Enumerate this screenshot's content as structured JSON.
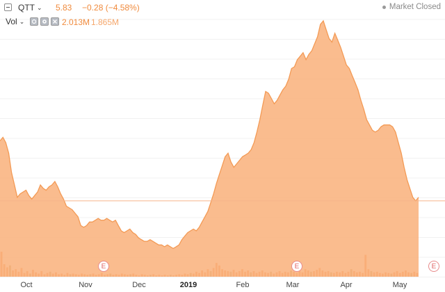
{
  "header": {
    "ticker": "QTT",
    "price": "5.83",
    "change": "−0.28 (−4.58%)",
    "market_status": "Market Closed"
  },
  "volume_bar": {
    "label": "Vol",
    "current": "2.013M",
    "average": "1.865M"
  },
  "colors": {
    "accent": "#f08a3c",
    "area_fill": "#f9b07a",
    "line": "#f39a55",
    "volume_bar": "#f7a36a",
    "volume_bar_alt": "#c9b07a",
    "earnings_badge": "#e06666"
  },
  "x_axis": {
    "ticks": [
      "Oct",
      "Nov",
      "Dec",
      "2019",
      "Feb",
      "Mar",
      "Apr",
      "May"
    ]
  },
  "earnings_markers": [
    "E",
    "E",
    "E"
  ],
  "chart_data": {
    "type": "area",
    "price_series": [
      0.77,
      0.79,
      0.76,
      0.7,
      0.59,
      0.52,
      0.45,
      0.47,
      0.48,
      0.49,
      0.46,
      0.44,
      0.46,
      0.48,
      0.52,
      0.5,
      0.49,
      0.51,
      0.52,
      0.54,
      0.51,
      0.47,
      0.44,
      0.4,
      0.39,
      0.38,
      0.36,
      0.34,
      0.29,
      0.28,
      0.29,
      0.31,
      0.31,
      0.32,
      0.33,
      0.32,
      0.32,
      0.33,
      0.32,
      0.31,
      0.32,
      0.29,
      0.26,
      0.25,
      0.26,
      0.27,
      0.25,
      0.24,
      0.22,
      0.21,
      0.2,
      0.2,
      0.21,
      0.2,
      0.19,
      0.18,
      0.18,
      0.17,
      0.18,
      0.17,
      0.16,
      0.17,
      0.18,
      0.21,
      0.23,
      0.25,
      0.26,
      0.27,
      0.26,
      0.28,
      0.31,
      0.34,
      0.37,
      0.42,
      0.47,
      0.53,
      0.58,
      0.63,
      0.68,
      0.7,
      0.65,
      0.62,
      0.64,
      0.66,
      0.68,
      0.69,
      0.7,
      0.72,
      0.76,
      0.82,
      0.89,
      0.97,
      1.05,
      1.04,
      1.01,
      0.98,
      1.0,
      1.03,
      1.06,
      1.08,
      1.12,
      1.18,
      1.19,
      1.23,
      1.25,
      1.27,
      1.23,
      1.26,
      1.28,
      1.32,
      1.36,
      1.43,
      1.45,
      1.4,
      1.35,
      1.33,
      1.38,
      1.34,
      1.3,
      1.25,
      1.2,
      1.18,
      1.14,
      1.1,
      1.06,
      1.0,
      0.95,
      0.89,
      0.86,
      0.83,
      0.82,
      0.83,
      0.85,
      0.86,
      0.86,
      0.86,
      0.85,
      0.82,
      0.76,
      0.7,
      0.62,
      0.55,
      0.5,
      0.45,
      0.43,
      0.45
    ],
    "volume_series": [
      0.4,
      0.2,
      0.15,
      0.18,
      0.1,
      0.12,
      0.08,
      0.14,
      0.06,
      0.09,
      0.05,
      0.11,
      0.07,
      0.05,
      0.09,
      0.04,
      0.06,
      0.08,
      0.05,
      0.07,
      0.04,
      0.05,
      0.03,
      0.06,
      0.04,
      0.05,
      0.04,
      0.03,
      0.05,
      0.04,
      0.03,
      0.04,
      0.05,
      0.03,
      0.04,
      0.06,
      0.03,
      0.04,
      0.05,
      0.03,
      0.04,
      0.03,
      0.05,
      0.04,
      0.03,
      0.04,
      0.05,
      0.03,
      0.02,
      0.04,
      0.03,
      0.02,
      0.03,
      0.04,
      0.02,
      0.03,
      0.02,
      0.03,
      0.02,
      0.03,
      0.02,
      0.03,
      0.04,
      0.03,
      0.05,
      0.04,
      0.06,
      0.05,
      0.08,
      0.06,
      0.1,
      0.07,
      0.12,
      0.09,
      0.14,
      0.22,
      0.18,
      0.12,
      0.1,
      0.09,
      0.08,
      0.11,
      0.07,
      0.09,
      0.12,
      0.08,
      0.1,
      0.07,
      0.09,
      0.06,
      0.08,
      0.1,
      0.07,
      0.06,
      0.08,
      0.05,
      0.07,
      0.09,
      0.06,
      0.08,
      0.07,
      0.1,
      0.08,
      0.06,
      0.09,
      0.07,
      0.12,
      0.1,
      0.08,
      0.09,
      0.11,
      0.14,
      0.1,
      0.08,
      0.09,
      0.07,
      0.06,
      0.08,
      0.07,
      0.09,
      0.06,
      0.08,
      0.12,
      0.09,
      0.07,
      0.08,
      0.06,
      0.35,
      0.12,
      0.09,
      0.07,
      0.08,
      0.06,
      0.05,
      0.07,
      0.06,
      0.05,
      0.07,
      0.09,
      0.06,
      0.08,
      0.1,
      0.07,
      0.06,
      0.08,
      0.06
    ],
    "current_price_level": 0.43,
    "grid": true
  }
}
